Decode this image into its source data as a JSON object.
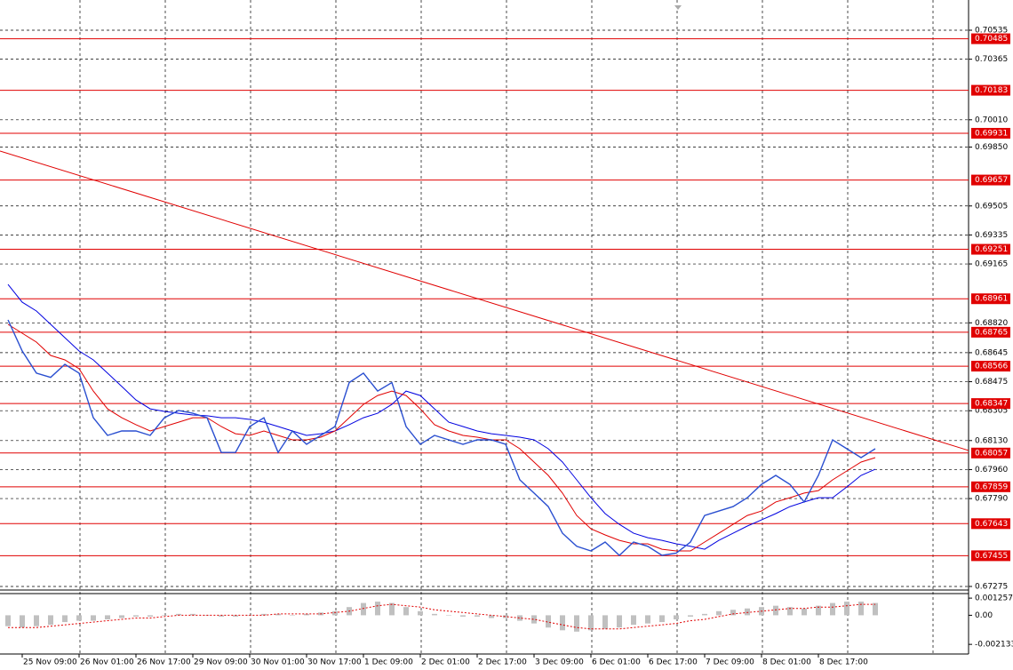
{
  "chart_data": [
    {
      "type": "line",
      "categories": [
        null,
        "25 Nov 09:00",
        null,
        null,
        null,
        "26 Nov 01:00",
        null,
        null,
        null,
        "26 Nov 17:00",
        null,
        null,
        null,
        "29 Nov 09:00",
        null,
        null,
        null,
        "30 Nov 01:00",
        null,
        null,
        null,
        "30 Nov 17:00",
        null,
        null,
        null,
        "1 Dec 09:00",
        null,
        null,
        null,
        "2 Dec 01:00",
        null,
        null,
        null,
        "2 Dec 17:00",
        null,
        null,
        null,
        "3 Dec 09:00",
        null,
        null,
        null,
        "6 Dec 01:00",
        null,
        null,
        null,
        "6 Dec 17:00",
        null,
        null,
        null,
        "7 Dec 09:00",
        null,
        null,
        null,
        "8 Dec 01:00",
        null,
        null,
        null,
        "8 Dec 17:00",
        null,
        null,
        null,
        null
      ],
      "series": [
        {
          "color": "#2a4fd0",
          "values": [
            0.68837,
            0.68655,
            0.68525,
            0.685,
            0.68577,
            0.68525,
            0.68264,
            0.6816,
            0.68186,
            0.68186,
            0.6816,
            0.68264,
            0.68306,
            0.6829,
            0.68264,
            0.6806,
            0.6806,
            0.68212,
            0.68264,
            0.6806,
            0.68186,
            0.68108,
            0.6816,
            0.68212,
            0.6847,
            0.68525,
            0.6842,
            0.6847,
            0.68212,
            0.68108,
            0.6816,
            0.68134,
            0.68108,
            0.68134,
            0.68134,
            0.68108,
            0.679,
            0.67822,
            0.67743,
            0.67587,
            0.6751,
            0.67483,
            0.67535,
            0.67457,
            0.67535,
            0.6751,
            0.67457,
            0.6747,
            0.67535,
            0.67691,
            0.67717,
            0.67743,
            0.67795,
            0.67873,
            0.67926,
            0.67873,
            0.6777,
            0.67926,
            0.68134,
            0.68082,
            0.6803,
            0.68082
          ]
        },
        {
          "color": "#e00000",
          "values": [
            0.68811,
            0.68759,
            0.68707,
            0.68629,
            0.68603,
            0.68551,
            0.6842,
            0.68316,
            0.68264,
            0.68223,
            0.68186,
            0.68212,
            0.68238,
            0.68264,
            0.68264,
            0.68212,
            0.6817,
            0.6816,
            0.68186,
            0.6816,
            0.68134,
            0.68134,
            0.6815,
            0.68186,
            0.68264,
            0.68342,
            0.68394,
            0.6842,
            0.68394,
            0.68316,
            0.68223,
            0.68186,
            0.6816,
            0.6815,
            0.68134,
            0.68134,
            0.68082,
            0.68004,
            0.67926,
            0.67822,
            0.67691,
            0.67613,
            0.67577,
            0.67545,
            0.67525,
            0.67525,
            0.67493,
            0.67483,
            0.67483,
            0.67535,
            0.67587,
            0.67639,
            0.67691,
            0.67717,
            0.6777,
            0.67795,
            0.67822,
            0.67837,
            0.679,
            0.67952,
            0.68004,
            0.6803
          ]
        },
        {
          "color": "#0000e0",
          "values": [
            0.69045,
            0.68941,
            0.68889,
            0.68811,
            0.68733,
            0.68655,
            0.68603,
            0.68525,
            0.68447,
            0.68368,
            0.68316,
            0.68301,
            0.6829,
            0.6828,
            0.68275,
            0.68264,
            0.68264,
            0.68254,
            0.68238,
            0.68212,
            0.68186,
            0.6816,
            0.6817,
            0.68186,
            0.68223,
            0.68264,
            0.6829,
            0.68342,
            0.6842,
            0.68394,
            0.68316,
            0.68238,
            0.68212,
            0.68186,
            0.6817,
            0.6816,
            0.6815,
            0.68134,
            0.68082,
            0.68004,
            0.679,
            0.67795,
            0.67702,
            0.67639,
            0.67587,
            0.67561,
            0.67545,
            0.67525,
            0.6751,
            0.67493,
            0.67545,
            0.67587,
            0.67629,
            0.67665,
            0.67702,
            0.67743,
            0.6777,
            0.67795,
            0.67795,
            0.67858,
            0.67926,
            0.67962
          ]
        }
      ],
      "ylim": [
        0.67254,
        0.70712
      ],
      "yticks": [
        0.70535,
        0.70365,
        {
          "value": 0.7001,
          "label": "0.70010"
        },
        {
          "value": 0.6985,
          "label": "0.69850"
        },
        0.69505,
        0.69335,
        0.69165,
        {
          "value": 0.6882,
          "label": "0.68820"
        },
        0.68645,
        0.68475,
        0.68305,
        {
          "value": 0.6813,
          "label": "0.68130"
        },
        {
          "value": 0.6796,
          "label": "0.67960"
        },
        {
          "value": 0.6779,
          "label": "0.67790"
        },
        0.67275
      ],
      "levels": [
        0.70485,
        0.70183,
        0.69931,
        0.69657,
        0.69251,
        0.68961,
        0.68765,
        0.68566,
        0.68347,
        0.68057,
        0.67859,
        0.67643,
        0.67455
      ],
      "level_color": "#e00000",
      "trendline": [
        0.69827,
        0.68072
      ],
      "grid": true
    },
    {
      "type": "bar",
      "color": "#c0c0c0",
      "values": [
        -0.0008,
        -0.0009,
        -0.0008,
        -0.0007,
        -0.0005,
        -0.0004,
        -0.0004,
        -0.0003,
        -0.0002,
        -0.0001,
        -0.0001,
        0,
        0.0001,
        0.0001,
        0,
        -0.0001,
        -0.0001,
        0,
        0.0001,
        0.0001,
        0,
        0.0001,
        0.0002,
        0.0003,
        0.0006,
        0.0009,
        0.001,
        0.0009,
        0.0006,
        0.0003,
        0.0001,
        0,
        -0.0001,
        -0.0001,
        -0.0002,
        -0.0002,
        -0.0004,
        -0.0006,
        -0.0009,
        -0.0011,
        -0.0012,
        -0.0011,
        -0.001,
        -0.0009,
        -0.0007,
        -0.0006,
        -0.0005,
        -0.0003,
        -0.0001,
        0.0001,
        0.0003,
        0.0004,
        0.0005,
        0.0006,
        0.0007,
        0.0006,
        0.0005,
        0.0007,
        0.0009,
        0.001,
        0.001,
        0.0009
      ],
      "signal": {
        "color": "#e00000",
        "values": [
          -0.0009,
          -0.0009,
          -0.0009,
          -0.0008,
          -0.0007,
          -0.0006,
          -0.0005,
          -0.0004,
          -0.0003,
          -0.0002,
          -0.0002,
          -0.0001,
          0,
          0,
          0,
          0,
          0,
          0,
          0,
          0.0001,
          0.0001,
          0.0001,
          0.0001,
          0.0002,
          0.0003,
          0.0005,
          0.0007,
          0.0008,
          0.0007,
          0.0006,
          0.0004,
          0.0003,
          0.0002,
          0.0001,
          0,
          -0.0001,
          -0.0002,
          -0.0003,
          -0.0005,
          -0.0007,
          -0.0009,
          -0.001,
          -0.001,
          -0.001,
          -0.0009,
          -0.0008,
          -0.0007,
          -0.0006,
          -0.0004,
          -0.0003,
          -0.0001,
          0.0001,
          0.0002,
          0.0003,
          0.0004,
          0.0005,
          0.0005,
          0.0006,
          0.0006,
          0.0007,
          0.0008,
          0.0008
        ]
      },
      "ylim": [
        -0.00284,
        0.00159
      ],
      "yticks": [
        0.001257,
        {
          "value": 0,
          "label": "0.00"
        },
        -0.002133
      ]
    }
  ]
}
